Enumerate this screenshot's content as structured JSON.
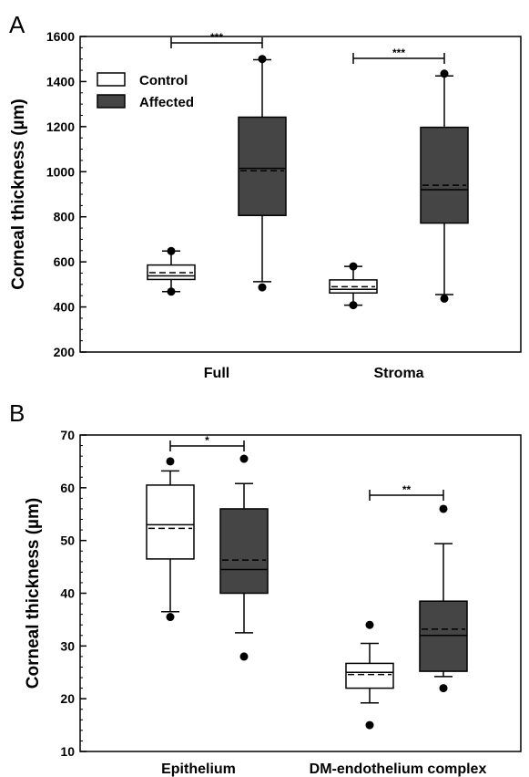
{
  "colors": {
    "control": "#ffffff",
    "affected": "#454545",
    "stroke": "#000000"
  },
  "legend": {
    "items": [
      {
        "key": "control",
        "label": "Control"
      },
      {
        "key": "affected",
        "label": "Affected"
      }
    ]
  },
  "chart_data": [
    {
      "type": "box",
      "panel": "A",
      "ylabel": "Corneal thickness (µm)",
      "ylim": [
        200,
        1600
      ],
      "yticks": [
        200,
        400,
        600,
        800,
        1000,
        1200,
        1400,
        1600
      ],
      "categories": [
        "Full",
        "Stroma"
      ],
      "series": [
        {
          "name": "Control",
          "boxes": [
            {
              "category": "Full",
              "whisker_low": 468,
              "q1": 522,
              "median": 538,
              "mean": 552,
              "q3": 586,
              "whisker_high": 648,
              "outliers": [
                468,
                648
              ]
            },
            {
              "category": "Stroma",
              "whisker_low": 408,
              "q1": 462,
              "median": 478,
              "mean": 490,
              "q3": 520,
              "whisker_high": 580,
              "outliers": [
                408,
                580
              ]
            }
          ]
        },
        {
          "name": "Affected",
          "boxes": [
            {
              "category": "Full",
              "whisker_low": 512,
              "q1": 806,
              "median": 1015,
              "mean": 1004,
              "q3": 1242,
              "whisker_high": 1497,
              "outliers": [
                487,
                1500
              ]
            },
            {
              "category": "Stroma",
              "whisker_low": 455,
              "q1": 772,
              "median": 920,
              "mean": 940,
              "q3": 1197,
              "whisker_high": 1425,
              "outliers": [
                437,
                1435
              ]
            }
          ]
        }
      ],
      "significance": [
        {
          "category": "Full",
          "label": "***"
        },
        {
          "category": "Stroma",
          "label": "***"
        }
      ]
    },
    {
      "type": "box",
      "panel": "B",
      "ylabel": "Corneal thickness (µm)",
      "ylim": [
        10,
        70
      ],
      "yticks": [
        10,
        20,
        30,
        40,
        50,
        60,
        70
      ],
      "categories": [
        "Epithelium",
        "DM-endothelium complex"
      ],
      "series": [
        {
          "name": "Control",
          "boxes": [
            {
              "category": "Epithelium",
              "whisker_low": 36.5,
              "q1": 46.5,
              "median": 53,
              "mean": 52.3,
              "q3": 60.5,
              "whisker_high": 63.2,
              "outliers": [
                35.5,
                65
              ]
            },
            {
              "category": "DM-endothelium complex",
              "whisker_low": 19.2,
              "q1": 22,
              "median": 25,
              "mean": 24.6,
              "q3": 26.7,
              "whisker_high": 30.5,
              "outliers": [
                15,
                34
              ]
            }
          ]
        },
        {
          "name": "Affected",
          "boxes": [
            {
              "category": "Epithelium",
              "whisker_low": 32.5,
              "q1": 40,
              "median": 44.5,
              "mean": 46.3,
              "q3": 56,
              "whisker_high": 60.8,
              "outliers": [
                28,
                65.5
              ]
            },
            {
              "category": "DM-endothelium complex",
              "whisker_low": 24.2,
              "q1": 25.2,
              "median": 32,
              "mean": 33.2,
              "q3": 38.5,
              "whisker_high": 49.4,
              "outliers": [
                22,
                56
              ]
            }
          ]
        }
      ],
      "significance": [
        {
          "category": "Epithelium",
          "label": "*"
        },
        {
          "category": "DM-endothelium complex",
          "label": "**"
        }
      ]
    }
  ]
}
